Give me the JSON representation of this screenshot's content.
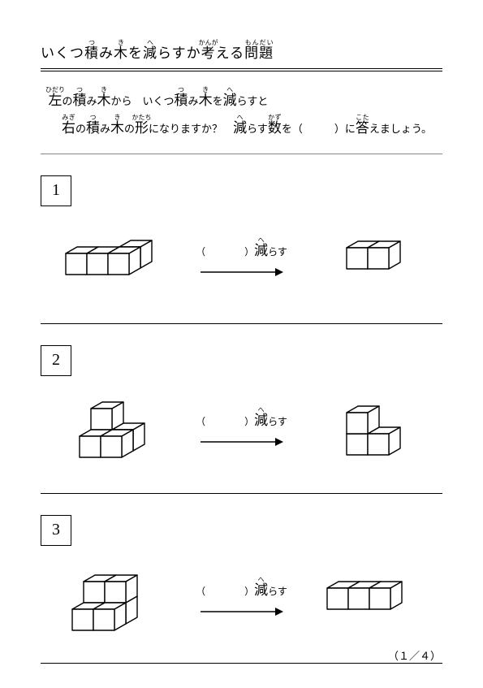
{
  "title_parts": {
    "prefix": "いくつ",
    "r1_base": "積",
    "r1_rt": "つ",
    "mid1": "み",
    "r2_base": "木",
    "r2_rt": "き",
    "mid2": "を",
    "r3_base": "減",
    "r3_rt": "へ",
    "mid3": "らすか",
    "r4_base": "考",
    "r4_rt": "かんが",
    "mid4": "える",
    "r5_base": "問",
    "r5_rt": "もん",
    "r6_base": "題",
    "r6_rt": "だい"
  },
  "instr_line1": {
    "r1_base": "左",
    "r1_rt": "ひだり",
    "t1": "の",
    "r2_base": "積",
    "r2_rt": "つ",
    "t2": "み",
    "r3_base": "木",
    "r3_rt": "き",
    "t3": "から　いくつ",
    "r4_base": "積",
    "r4_rt": "つ",
    "t4": "み",
    "r5_base": "木",
    "r5_rt": "き",
    "t5": "を",
    "r6_base": "減",
    "r6_rt": "へ",
    "t6": "らすと"
  },
  "instr_line2": {
    "r1_base": "右",
    "r1_rt": "みぎ",
    "t1": "の",
    "r2_base": "積",
    "r2_rt": "つ",
    "t2": "み",
    "r3_base": "木",
    "r3_rt": "き",
    "t3": "の",
    "r4_base": "形",
    "r4_rt": "かたち",
    "t4": "になりますか？　",
    "r5_base": "減",
    "r5_rt": "へ",
    "t5": "らす",
    "r6_base": "数",
    "r6_rt": "かず",
    "t6": "を（　　　）に",
    "r7_base": "答",
    "r7_rt": "こた",
    "t7": "えましょう。"
  },
  "blank_label_open": "（　　　　）",
  "blank_label_rbase": "減",
  "blank_label_rrt": "へ",
  "blank_label_tail": "らす",
  "problems": {
    "p1": {
      "num": "1"
    },
    "p2": {
      "num": "2"
    },
    "p3": {
      "num": "3"
    }
  },
  "page_number": "（１／４）",
  "colors": {
    "stroke": "#000000",
    "fill": "#ffffff"
  }
}
